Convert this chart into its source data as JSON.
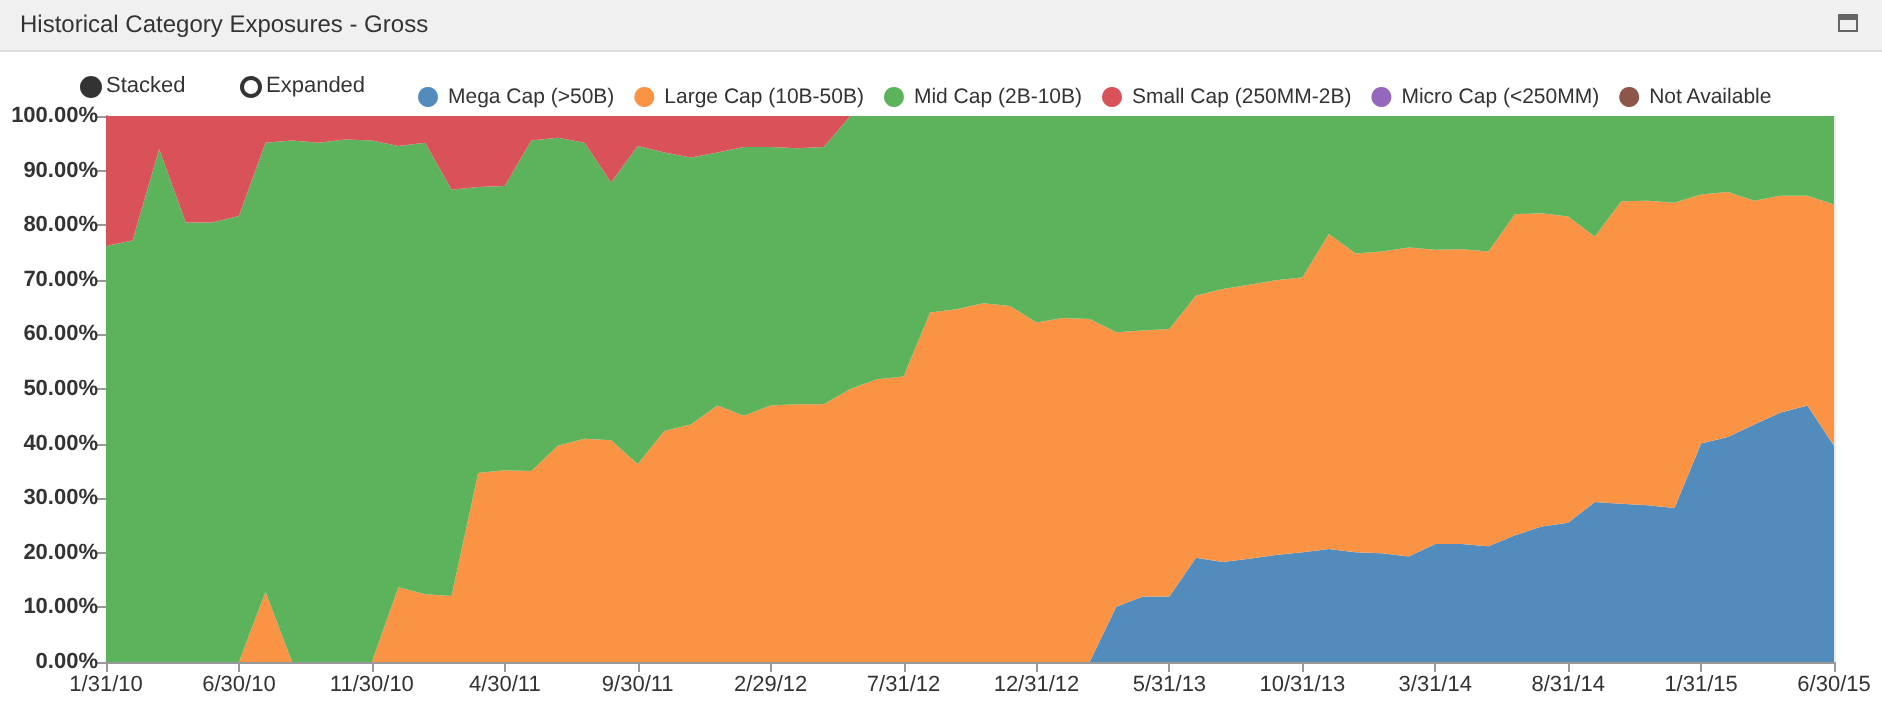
{
  "chart_data": {
    "type": "area",
    "title": "Historical Category Exposures - Gross",
    "stacked": true,
    "grid": "x",
    "legend": "top",
    "annotations": [
      "Stacked",
      "Expanded"
    ],
    "categories": [
      "1/31/10",
      null,
      null,
      null,
      null,
      "6/30/10",
      null,
      null,
      null,
      null,
      "11/30/10",
      null,
      null,
      null,
      null,
      "4/30/11",
      null,
      null,
      null,
      null,
      "9/30/11",
      null,
      null,
      null,
      null,
      "2/29/12",
      null,
      null,
      null,
      null,
      "7/31/12",
      null,
      null,
      null,
      null,
      "12/31/12",
      null,
      null,
      null,
      null,
      "5/31/13",
      null,
      null,
      null,
      null,
      "10/31/13",
      null,
      null,
      null,
      null,
      "3/31/14",
      null,
      null,
      null,
      null,
      "8/31/14",
      null,
      null,
      null,
      null,
      "1/31/15",
      null,
      null,
      null,
      null,
      "6/30/15"
    ],
    "ylim": [
      0,
      100
    ],
    "yticks": [
      {
        "value": 0,
        "label": "0.00%"
      },
      {
        "value": 10,
        "label": "10.00%"
      },
      {
        "value": 20,
        "label": "20.00%"
      },
      {
        "value": 30,
        "label": "30.00%"
      },
      {
        "value": 40,
        "label": "40.00%"
      },
      {
        "value": 50,
        "label": "50.00%"
      },
      {
        "value": 60,
        "label": "60.00%"
      },
      {
        "value": 70,
        "label": "70.00%"
      },
      {
        "value": 80,
        "label": "80.00%"
      },
      {
        "value": 90,
        "label": "90.00%"
      },
      {
        "value": 100,
        "label": "100.00%"
      }
    ],
    "series": [
      {
        "name": "Mega Cap (>50B)",
        "color": "#528cbd",
        "values": [
          0,
          0,
          0,
          0,
          0,
          0,
          0,
          0,
          0,
          0,
          0,
          0,
          0,
          0,
          0,
          0,
          0,
          0,
          0,
          0,
          0,
          0,
          0,
          0,
          0,
          0,
          0,
          0,
          0,
          0,
          0,
          0,
          0,
          0,
          0,
          0,
          0,
          0,
          10.1,
          12,
          12,
          19.1,
          18.3,
          18.9,
          19.6,
          20.1,
          20.7,
          20.1,
          19.9,
          19.3,
          21.6,
          21.6,
          21.2,
          23.2,
          24.8,
          25.5,
          29.3,
          29,
          28.7,
          28.2,
          40,
          41.2,
          43.5,
          45.7,
          47,
          39.6
        ]
      },
      {
        "name": "Large Cap (10B-50B)",
        "color": "#fb9345",
        "values": [
          0,
          0,
          0,
          0,
          0,
          0,
          12.8,
          0,
          0,
          0,
          0,
          13.7,
          12.4,
          12.1,
          34.6,
          35.1,
          35,
          39.6,
          40.9,
          40.6,
          36.2,
          42.3,
          43.5,
          47,
          45.1,
          47,
          47.2,
          47.2,
          50,
          51.8,
          52.3,
          64,
          64.6,
          65.7,
          65.2,
          62.2,
          63,
          62.8,
          50.3,
          48.7,
          49,
          48,
          50,
          50.2,
          50.3,
          50.3,
          57.7,
          54.7,
          55.3,
          56.6,
          53.9,
          54,
          54,
          58.8,
          57.4,
          56.1,
          48.6,
          55.4,
          55.8,
          55.9,
          45.6,
          44.9,
          41,
          39.7,
          38.4,
          44.2
        ]
      },
      {
        "name": "Mid Cap (2B-10B)",
        "color": "#5cb35c",
        "values": [
          76.2,
          77.2,
          93.9,
          80.5,
          80.5,
          81.7,
          82.3,
          95.5,
          95.1,
          95.7,
          95.5,
          80.8,
          82.7,
          74.4,
          52.4,
          52.1,
          60.5,
          56.4,
          54.2,
          47.2,
          58.3,
          51,
          48.9,
          46.3,
          49.2,
          47.3,
          46.9,
          47.1,
          50,
          48.2,
          47.7,
          36,
          35.4,
          34.3,
          34.8,
          37.8,
          37,
          37.2,
          39.6,
          39.3,
          39,
          32.9,
          31.7,
          30.9,
          30.1,
          29.6,
          21.6,
          25.2,
          24.8,
          24.1,
          24.5,
          24.4,
          24.8,
          18,
          17.8,
          18.4,
          22.1,
          15.6,
          15.5,
          15.9,
          14.4,
          13.9,
          15.5,
          14.6,
          14.6,
          16.2
        ]
      },
      {
        "name": "Small Cap (250MM-2B)",
        "color": "#d9525a",
        "values": [
          23.8,
          22.8,
          6.1,
          19.5,
          19.5,
          18.3,
          4.9,
          4.5,
          4.9,
          4.3,
          4.5,
          5.5,
          4.9,
          13.5,
          13,
          12.8,
          4.5,
          4,
          4.9,
          12.2,
          5.5,
          6.7,
          7.6,
          6.7,
          5.7,
          5.7,
          5.9,
          5.7,
          0,
          0,
          0,
          0,
          0,
          0,
          0,
          0,
          0,
          0,
          0,
          0,
          0,
          0,
          0,
          0,
          0,
          0,
          0,
          0,
          0,
          0,
          0,
          0,
          0,
          0,
          0,
          0,
          0,
          0,
          0,
          0,
          0,
          0,
          0,
          0,
          0,
          0
        ]
      },
      {
        "name": "Micro Cap (<250MM)",
        "color": "#9467bd",
        "values": [
          null,
          null,
          null,
          null,
          null,
          null,
          null,
          null,
          null,
          null,
          null,
          null,
          null,
          null,
          null,
          null,
          null,
          null,
          null,
          null,
          null,
          null,
          null,
          null,
          null,
          null,
          null,
          null,
          null,
          null,
          null,
          null,
          null,
          null,
          null,
          null,
          null,
          null,
          null,
          null,
          null,
          null,
          null,
          null,
          null,
          null,
          null,
          null,
          null,
          null,
          null,
          null,
          null,
          null,
          null,
          null,
          null,
          null,
          null,
          null,
          null,
          null,
          null,
          null,
          null,
          null
        ]
      },
      {
        "name": "Not Available",
        "color": "#8c564b",
        "values": [
          null,
          null,
          null,
          null,
          null,
          null,
          null,
          null,
          null,
          null,
          null,
          null,
          null,
          null,
          null,
          null,
          null,
          null,
          null,
          null,
          null,
          null,
          null,
          null,
          null,
          null,
          null,
          null,
          null,
          null,
          null,
          null,
          null,
          null,
          null,
          null,
          null,
          null,
          null,
          null,
          null,
          null,
          null,
          null,
          null,
          null,
          null,
          null,
          null,
          null,
          null,
          null,
          null,
          null,
          null,
          null,
          null,
          null,
          null,
          null,
          null,
          null,
          null,
          null,
          null,
          null
        ]
      }
    ]
  }
}
